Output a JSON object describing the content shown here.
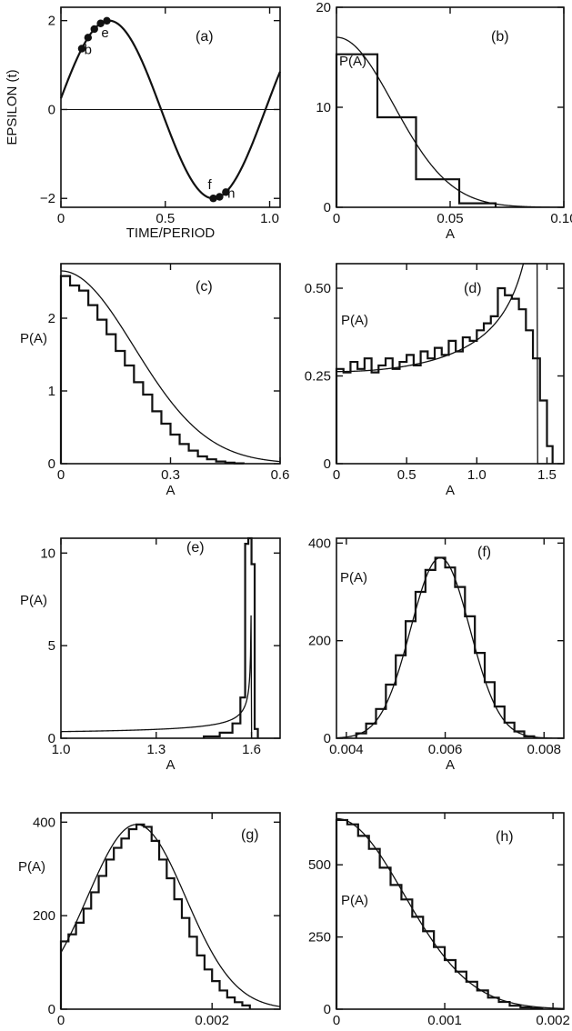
{
  "chart_data": [
    {
      "panel": "(a)",
      "type": "line",
      "ylabel": "EPSILON (t)",
      "xlabel": "TIME/PERIOD",
      "xlim": [
        0,
        1.05
      ],
      "ylim": [
        -2.2,
        2.3
      ],
      "xticks": [
        0,
        0.5,
        1.0
      ],
      "xtick_labels": [
        "0",
        "0.5",
        "1.0"
      ],
      "yticks": [
        -2,
        0,
        2
      ],
      "ytick_labels": [
        "−2",
        "0",
        "2"
      ],
      "curve": {
        "kind": "sine",
        "amplitude": 2.0,
        "phase_offset": 0.02
      },
      "zero_line": true,
      "points": [
        {
          "label": "",
          "x": 0.1
        },
        {
          "label": "b",
          "x": 0.13
        },
        {
          "label": "",
          "x": 0.16
        },
        {
          "label": "",
          "x": 0.19
        },
        {
          "label": "e",
          "x": 0.22
        },
        {
          "label": "f",
          "x": 0.73
        },
        {
          "label": "",
          "x": 0.76
        },
        {
          "label": "h",
          "x": 0.79
        }
      ]
    },
    {
      "panel": "(b)",
      "type": "histogram",
      "ylabel": "P(A)",
      "xlabel": "A",
      "xlim": [
        0,
        0.1
      ],
      "ylim": [
        0,
        20
      ],
      "xticks": [
        0,
        0.05,
        0.1
      ],
      "xtick_labels": [
        "0",
        "0.05",
        "0.10"
      ],
      "yticks": [
        0,
        10,
        20
      ],
      "ytick_labels": [
        "0",
        "10",
        "20"
      ],
      "histogram": {
        "edges": [
          0,
          0.018,
          0.035,
          0.054,
          0.07
        ],
        "values": [
          15.3,
          9.0,
          2.8,
          0.4
        ]
      },
      "fit": {
        "kind": "halfgauss",
        "a": 17.0,
        "b": 0,
        "s": 0.025
      }
    },
    {
      "panel": "(c)",
      "type": "histogram",
      "ylabel": "P(A)",
      "xlabel": "A",
      "xlim": [
        0,
        0.6
      ],
      "ylim": [
        0,
        2.75
      ],
      "xticks": [
        0,
        0.3,
        0.6
      ],
      "xtick_labels": [
        "0",
        "0.3",
        "0.6"
      ],
      "yticks": [
        0,
        1,
        2
      ],
      "ytick_labels": [
        "0",
        "1",
        "2"
      ],
      "histogram": {
        "edges": [
          0,
          0.025,
          0.05,
          0.075,
          0.1,
          0.125,
          0.15,
          0.175,
          0.2,
          0.225,
          0.25,
          0.275,
          0.3,
          0.325,
          0.35,
          0.375,
          0.4,
          0.425,
          0.45,
          0.475,
          0.5
        ],
        "values": [
          2.58,
          2.45,
          2.38,
          2.18,
          1.98,
          1.78,
          1.55,
          1.35,
          1.12,
          0.95,
          0.72,
          0.55,
          0.4,
          0.27,
          0.18,
          0.1,
          0.06,
          0.03,
          0.015,
          0.005
        ]
      },
      "fit": {
        "kind": "halfgauss",
        "a": 2.65,
        "b": 0,
        "s": 0.2
      }
    },
    {
      "panel": "(d)",
      "type": "histogram",
      "ylabel": "P(A)",
      "xlabel": "A",
      "xlim": [
        0,
        1.62
      ],
      "ylim": [
        0,
        0.57
      ],
      "xticks": [
        0,
        0.5,
        1.0,
        1.5
      ],
      "xtick_labels": [
        "0",
        "0.5",
        "1.0",
        "1.5"
      ],
      "yticks": [
        0,
        0.25,
        0.5
      ],
      "ytick_labels": [
        "0",
        "0.25",
        "0.50"
      ],
      "histogram": {
        "edges": [
          0,
          0.05,
          0.1,
          0.15,
          0.2,
          0.25,
          0.3,
          0.35,
          0.4,
          0.45,
          0.5,
          0.55,
          0.6,
          0.65,
          0.7,
          0.75,
          0.8,
          0.85,
          0.9,
          0.95,
          1.0,
          1.05,
          1.1,
          1.15,
          1.2,
          1.25,
          1.3,
          1.35,
          1.4,
          1.45,
          1.5,
          1.54
        ],
        "values": [
          0.27,
          0.26,
          0.29,
          0.27,
          0.3,
          0.26,
          0.28,
          0.3,
          0.27,
          0.29,
          0.31,
          0.28,
          0.32,
          0.3,
          0.33,
          0.31,
          0.35,
          0.32,
          0.36,
          0.35,
          0.38,
          0.4,
          0.42,
          0.5,
          0.48,
          0.47,
          0.44,
          0.38,
          0.3,
          0.18,
          0.05
        ]
      },
      "fit": {
        "kind": "arcsine",
        "c": 0.2625,
        "R": 1.5,
        "Aeff": 1.43
      }
    },
    {
      "panel": "(e)",
      "type": "histogram",
      "ylabel": "P(A)",
      "xlabel": "A",
      "xlim": [
        1.0,
        1.69
      ],
      "ylim": [
        0,
        10.8
      ],
      "xticks": [
        1.0,
        1.3,
        1.6
      ],
      "xtick_labels": [
        "1.0",
        "1.3",
        "1.6"
      ],
      "yticks": [
        0,
        5,
        10
      ],
      "ytick_labels": [
        "0",
        "5",
        "10"
      ],
      "histogram": {
        "edges": [
          1.45,
          1.5,
          1.54,
          1.565,
          1.58,
          1.59,
          1.6,
          1.61,
          1.62
        ],
        "values": [
          0.1,
          0.3,
          0.8,
          2.2,
          10.5,
          10.8,
          9.4,
          0.5
        ]
      },
      "fit": {
        "kind": "arcsine",
        "c": 0.28,
        "R": 1.6,
        "Aeff": 1.5997
      }
    },
    {
      "panel": "(f)",
      "type": "histogram",
      "ylabel": "P(A)",
      "xlabel": "A",
      "xlim": [
        0.0038,
        0.0084
      ],
      "ylim": [
        0,
        410
      ],
      "xticks": [
        0.004,
        0.006,
        0.008
      ],
      "xtick_labels": [
        "0.004",
        "0.006",
        "0.008"
      ],
      "yticks": [
        0,
        200,
        400
      ],
      "ytick_labels": [
        "0",
        "200",
        "400"
      ],
      "histogram": {
        "edges": [
          0.0042,
          0.0044,
          0.0046,
          0.0048,
          0.005,
          0.0052,
          0.0054,
          0.0056,
          0.0058,
          0.006,
          0.0062,
          0.0064,
          0.0066,
          0.0068,
          0.007,
          0.0072,
          0.0074,
          0.0076,
          0.0078
        ],
        "values": [
          10,
          30,
          60,
          110,
          170,
          240,
          300,
          345,
          370,
          350,
          310,
          250,
          175,
          115,
          65,
          32,
          14,
          4
        ]
      },
      "fit": {
        "kind": "gauss",
        "a": 370,
        "b": 0.0059,
        "s": 0.0006
      }
    },
    {
      "panel": "(g)",
      "type": "histogram",
      "ylabel": "P(A)",
      "xlabel": "A",
      "xlim": [
        0,
        0.0029
      ],
      "ylim": [
        0,
        420
      ],
      "xticks": [
        0,
        0.002
      ],
      "xtick_labels": [
        "0",
        "0.002"
      ],
      "yticks": [
        0,
        200,
        400
      ],
      "ytick_labels": [
        "0",
        "200",
        "400"
      ],
      "histogram": {
        "edges": [
          0,
          0.0001,
          0.0002,
          0.0003,
          0.0004,
          0.0005,
          0.0006,
          0.0007,
          0.0008,
          0.0009,
          0.001,
          0.0011,
          0.0012,
          0.0013,
          0.0014,
          0.0015,
          0.0016,
          0.0017,
          0.0018,
          0.0019,
          0.002,
          0.0021,
          0.0022,
          0.0023,
          0.0024,
          0.0025
        ],
        "values": [
          145,
          160,
          185,
          215,
          250,
          285,
          320,
          345,
          365,
          385,
          395,
          390,
          360,
          320,
          280,
          235,
          195,
          155,
          115,
          85,
          60,
          40,
          25,
          15,
          8
        ]
      },
      "fit": {
        "kind": "gauss",
        "a": 395,
        "b": 0.001,
        "s": 0.00065
      }
    },
    {
      "panel": "(h)",
      "type": "histogram",
      "ylabel": "P(A)",
      "xlabel": "A",
      "xlim": [
        0,
        0.0021
      ],
      "ylim": [
        0,
        680
      ],
      "xticks": [
        0,
        0.001,
        0.002
      ],
      "xtick_labels": [
        "0",
        "0.001",
        "0.002"
      ],
      "yticks": [
        0,
        250,
        500
      ],
      "ytick_labels": [
        "0",
        "250",
        "500"
      ],
      "histogram": {
        "edges": [
          0,
          0.0001,
          0.0002,
          0.0003,
          0.0004,
          0.0005,
          0.0006,
          0.0007,
          0.0008,
          0.0009,
          0.001,
          0.0011,
          0.0012,
          0.0013,
          0.0014,
          0.0015,
          0.0016,
          0.0017,
          0.0018,
          0.0019
        ],
        "values": [
          655,
          640,
          600,
          555,
          490,
          430,
          380,
          320,
          270,
          215,
          170,
          130,
          95,
          65,
          40,
          25,
          12,
          6,
          3
        ]
      },
      "fit": {
        "kind": "halfgauss",
        "a": 660,
        "b": 0,
        "s": 0.00062
      }
    }
  ]
}
